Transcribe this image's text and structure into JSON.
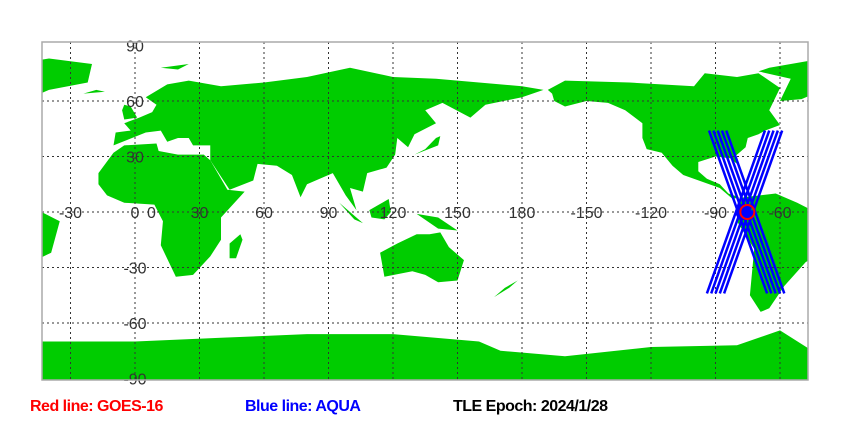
{
  "map": {
    "projection": "equirectangular",
    "lon_range": [
      -43,
      313
    ],
    "lat_range": [
      -91,
      92
    ],
    "land_color": "#00cc00",
    "ocean_color": "#ffffff",
    "grid": true,
    "lon_labels": [
      "-30",
      "0",
      "30",
      "60",
      "90",
      "120",
      "150",
      "180",
      "-150",
      "-120",
      "-90",
      "-60"
    ],
    "lon_label_values": [
      -30,
      0,
      30,
      60,
      90,
      120,
      150,
      180,
      210,
      240,
      270,
      300
    ],
    "lat_labels": [
      "90",
      "60",
      "30",
      "0",
      "-30",
      "-60",
      "-90"
    ],
    "lat_label_values": [
      90,
      60,
      30,
      0,
      -30,
      -60,
      -90
    ]
  },
  "satellites": {
    "goes16": {
      "name": "GOES-16",
      "color": "#ff0000",
      "lon": -75.2,
      "lat": 0
    },
    "aqua": {
      "name": "AQUA",
      "color": "#0000ff",
      "lon": -77,
      "lat": 0,
      "tracks": [
        [
          [
            -94,
            -44
          ],
          [
            -67,
            44
          ]
        ],
        [
          [
            -92,
            -44
          ],
          [
            -65,
            44
          ]
        ],
        [
          [
            -90,
            -44
          ],
          [
            -63,
            44
          ]
        ],
        [
          [
            -88,
            -44
          ],
          [
            -61,
            44
          ]
        ],
        [
          [
            -86,
            -44
          ],
          [
            -59,
            44
          ]
        ],
        [
          [
            -66,
            -44
          ],
          [
            -93,
            44
          ]
        ],
        [
          [
            -64,
            -44
          ],
          [
            -91,
            44
          ]
        ],
        [
          [
            -62,
            -44
          ],
          [
            -89,
            44
          ]
        ],
        [
          [
            -60,
            -44
          ],
          [
            -87,
            44
          ]
        ],
        [
          [
            -58,
            -44
          ],
          [
            -85,
            44
          ]
        ]
      ]
    }
  },
  "legend": {
    "red_line": "Red line: GOES-16",
    "blue_line": "Blue line: AQUA",
    "tle_epoch": "TLE Epoch: 2024/1/28",
    "red_color": "#ff0000",
    "blue_color": "#0000ff"
  }
}
